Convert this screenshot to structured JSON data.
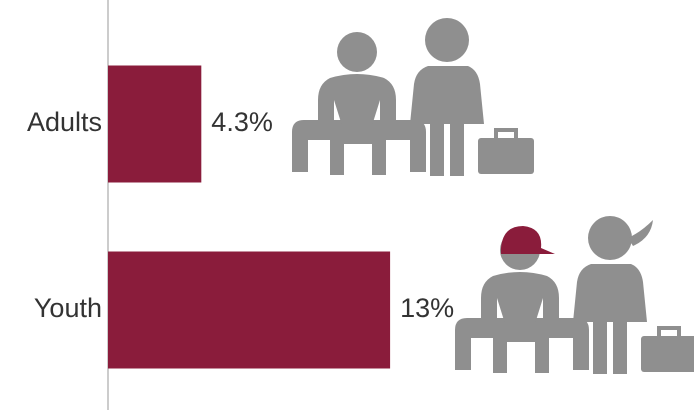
{
  "chart_data": {
    "type": "bar",
    "orientation": "horizontal",
    "categories": [
      "Adults",
      "Youth"
    ],
    "values": [
      4.3,
      13
    ],
    "value_labels": [
      "4.3%",
      "13%"
    ],
    "color": "#8a1c3b"
  }
}
